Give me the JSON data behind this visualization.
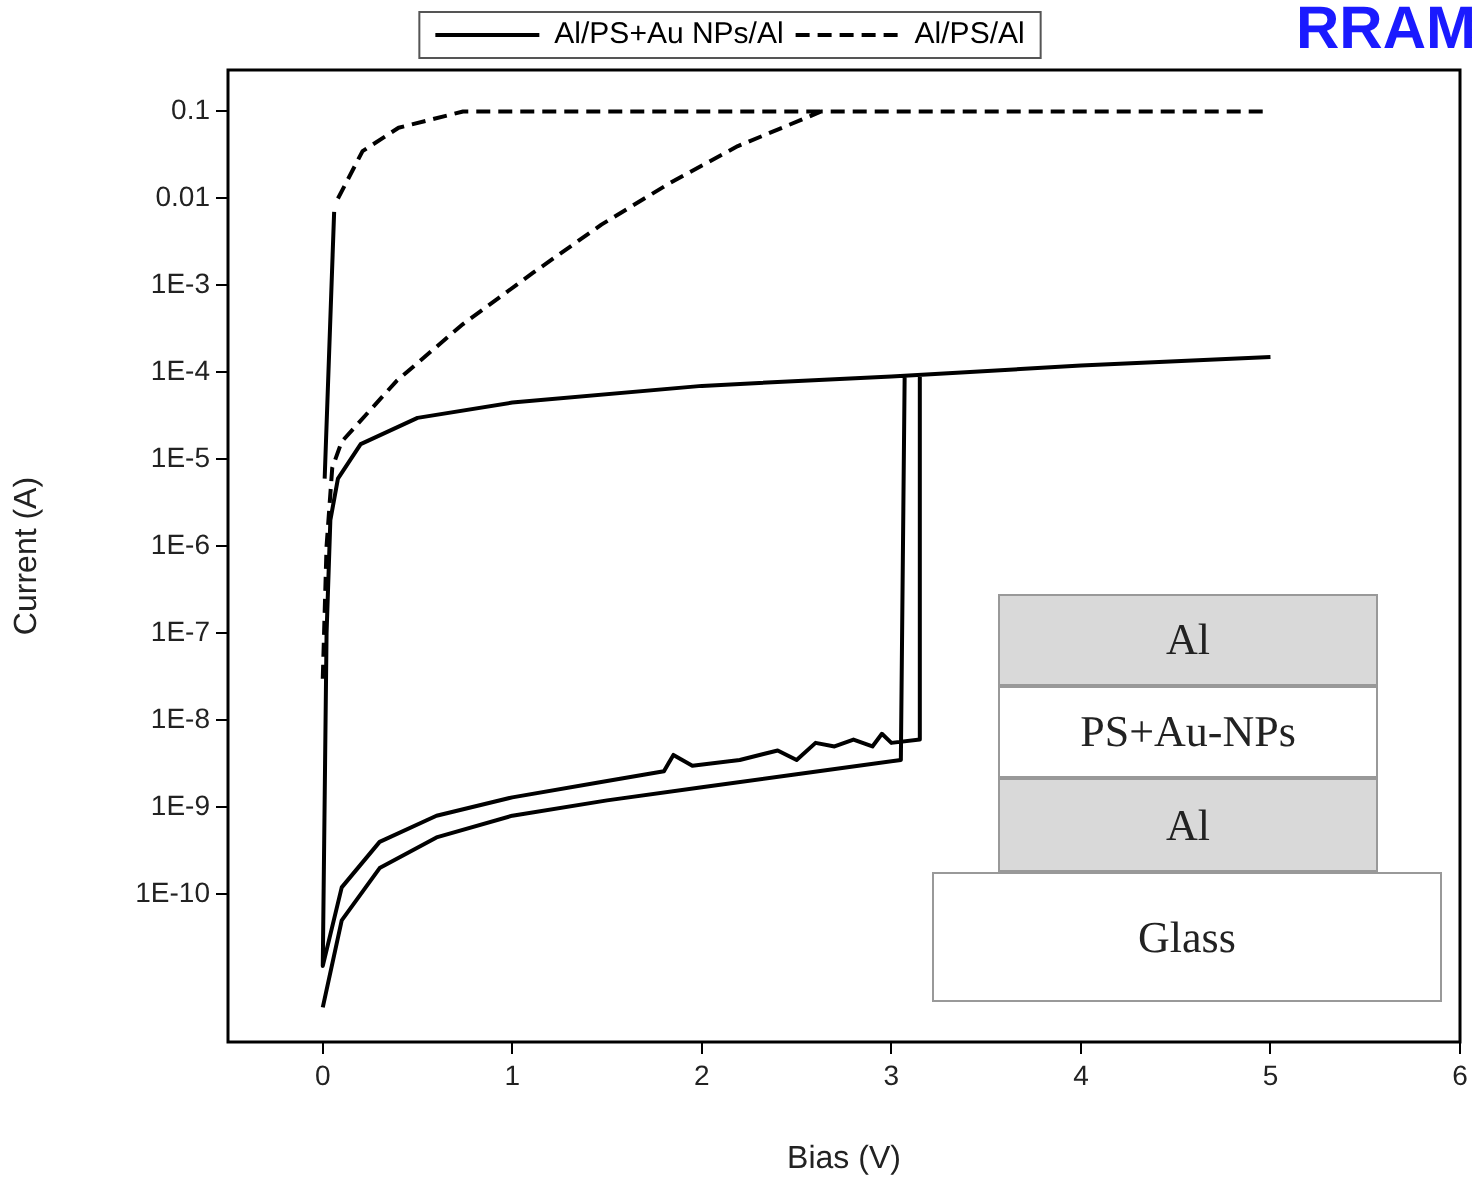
{
  "chart_data": {
    "type": "line",
    "xlabel": "Bias (V)",
    "ylabel": "Current (A)",
    "annotations": [
      "RRAM",
      "Al",
      "PS+Au-NPs",
      "Al",
      "Glass"
    ],
    "xlim": [
      -0.5,
      6
    ],
    "xticks": [
      0,
      1,
      2,
      3,
      4,
      5,
      6
    ],
    "ylim": [
      2e-12,
      0.3
    ],
    "yticks": [
      {
        "value": 1e-10,
        "label": "1E-10"
      },
      {
        "value": 1e-09,
        "label": "1E-9"
      },
      {
        "value": 1e-08,
        "label": "1E-8"
      },
      {
        "value": 1e-07,
        "label": "1E-7"
      },
      {
        "value": 1e-06,
        "label": "1E-6"
      },
      {
        "value": 1e-05,
        "label": "1E-5"
      },
      {
        "value": 0.0001,
        "label": "1E-4"
      },
      {
        "value": 0.001,
        "label": "1E-3"
      },
      0.01,
      0.1
    ],
    "log": true,
    "legend": "top",
    "series": [
      {
        "name": "Al/PS+Au NPs/Al",
        "color": "#000000",
        "line_style": "solid",
        "x": [
          0.06,
          0.01,
          0.03,
          5,
          4,
          3,
          2,
          1,
          0.5,
          0.2,
          0.08,
          0.04,
          0.02,
          0,
          0.1,
          0.3,
          0.6,
          1,
          1.5,
          1.8,
          1.85,
          1.95,
          2.2,
          2.4,
          2.5,
          2.6,
          2.7,
          2.8,
          2.9,
          2.95,
          3.0,
          3.15,
          3.15,
          3.1,
          0,
          0.1,
          0.3,
          0.6,
          1,
          1.5,
          2,
          2.5,
          3.05,
          3.07
        ],
        "values": [
          0.007,
          6e-06,
          null,
          0.00015,
          0.00012,
          9e-05,
          7e-05,
          4.5e-05,
          3e-05,
          1.5e-05,
          6e-06,
          2e-06,
          1e-07,
          1.5e-11,
          1.2e-10,
          4e-10,
          8e-10,
          1.3e-09,
          2e-09,
          2.6e-09,
          4e-09,
          3e-09,
          3.5e-09,
          4.5e-09,
          3.5e-09,
          5.5e-09,
          5e-09,
          6e-09,
          5e-09,
          7e-09,
          5.5e-09,
          6e-09,
          9e-05,
          null,
          5e-12,
          5e-11,
          2e-10,
          4.5e-10,
          8e-10,
          1.2e-09,
          1.7e-09,
          2.4e-09,
          3.5e-09,
          9e-05
        ]
      },
      {
        "name": "Al/PS/Al",
        "color": "#000000",
        "line_style": "dashed",
        "x": [
          0,
          0.02,
          0.05,
          0.1,
          0.39,
          0.74,
          1.11,
          1.47,
          1.83,
          2.19,
          2.63,
          5,
          2,
          0.08,
          0.21,
          0.4,
          0.74,
          2.63
        ],
        "values": [
          3e-08,
          1e-06,
          8e-06,
          1.6e-05,
          8e-05,
          0.00036,
          0.0014,
          0.005,
          0.015,
          0.04,
          0.1,
          0.1,
          null,
          0.01,
          0.035,
          0.065,
          0.1,
          0.1
        ]
      }
    ]
  }
}
